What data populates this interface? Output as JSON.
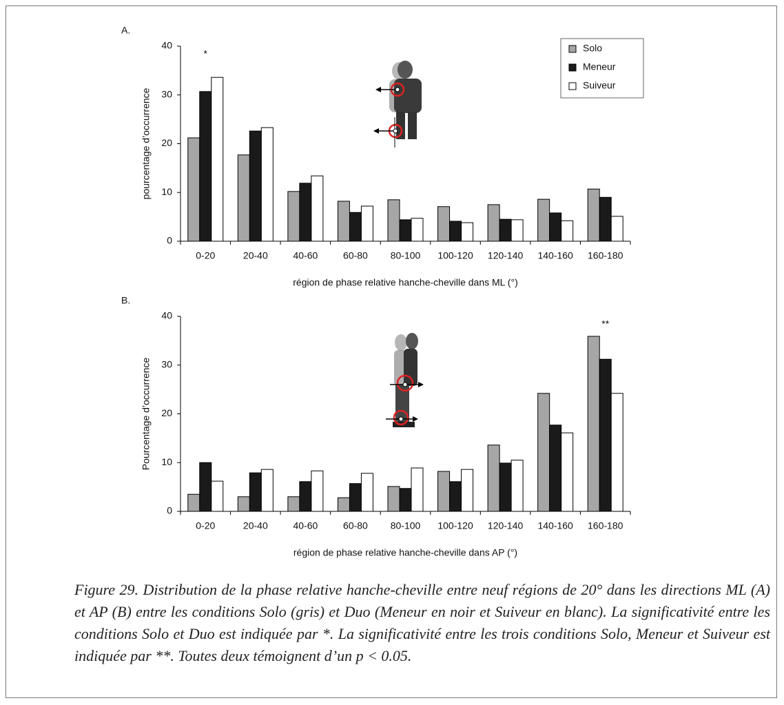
{
  "chart_data": [
    {
      "type": "bar",
      "panel": "A.",
      "y_label": "pourcentage d’occurrence",
      "x_label": "région de phase relative hanche-cheville dans ML (°)",
      "categories": [
        "0-20",
        "20-40",
        "40-60",
        "60-80",
        "80-100",
        "100-120",
        "120-140",
        "140-160",
        "160-180"
      ],
      "series": [
        {
          "name": "Solo",
          "color": "#a6a6a6",
          "values": [
            21.2,
            17.7,
            10.2,
            8.2,
            8.5,
            7.1,
            7.5,
            8.6,
            10.7
          ]
        },
        {
          "name": "Meneur",
          "color": "#1a1a1a",
          "values": [
            30.7,
            22.6,
            11.9,
            5.9,
            4.4,
            4.1,
            4.5,
            5.8,
            9.0
          ]
        },
        {
          "name": "Suiveur",
          "color": "#ffffff",
          "values": [
            33.6,
            23.3,
            13.4,
            7.2,
            4.7,
            3.8,
            4.4,
            4.2,
            5.1
          ]
        }
      ],
      "ylim": [
        0,
        40
      ],
      "yticks": [
        0,
        10,
        20,
        30,
        40
      ],
      "legend": "upper right",
      "annotations": [
        {
          "text": "*",
          "category": "0-20"
        }
      ]
    },
    {
      "type": "bar",
      "panel": "B.",
      "y_label": "Pourcentage d’occurrence",
      "x_label": "région de phase relative hanche-cheville dans AP (°)",
      "categories": [
        "0-20",
        "20-40",
        "40-60",
        "60-80",
        "80-100",
        "100-120",
        "120-140",
        "140-160",
        "160-180"
      ],
      "series": [
        {
          "color": "#a6a6a6",
          "values": [
            3.5,
            3.0,
            3.0,
            2.8,
            5.1,
            8.2,
            13.6,
            24.2,
            35.9
          ]
        },
        {
          "color": "#1a1a1a",
          "values": [
            10.0,
            7.9,
            6.1,
            5.7,
            4.7,
            6.1,
            9.9,
            17.7,
            31.2
          ]
        },
        {
          "color": "#ffffff",
          "values": [
            6.2,
            8.6,
            8.3,
            7.8,
            8.9,
            8.6,
            10.5,
            16.1,
            24.2
          ]
        }
      ],
      "ylim": [
        0,
        40
      ],
      "yticks": [
        0,
        10,
        20,
        30,
        40
      ],
      "annotations": [
        {
          "text": "**",
          "category": "160-180"
        }
      ]
    }
  ],
  "caption": "Figure 29. Distribution de la phase relative hanche-cheville entre neuf régions de 20° dans les directions ML (A) et AP (B) entre les conditions Solo (gris) et Duo (Meneur en noir et Suiveur en blanc). La significativité entre les conditions Solo et Duo est indiquée par *. La significativité entre les trois conditions Solo, Meneur et Suiveur est indiquée par **. Toutes deux témoignent d’un p < 0.05."
}
